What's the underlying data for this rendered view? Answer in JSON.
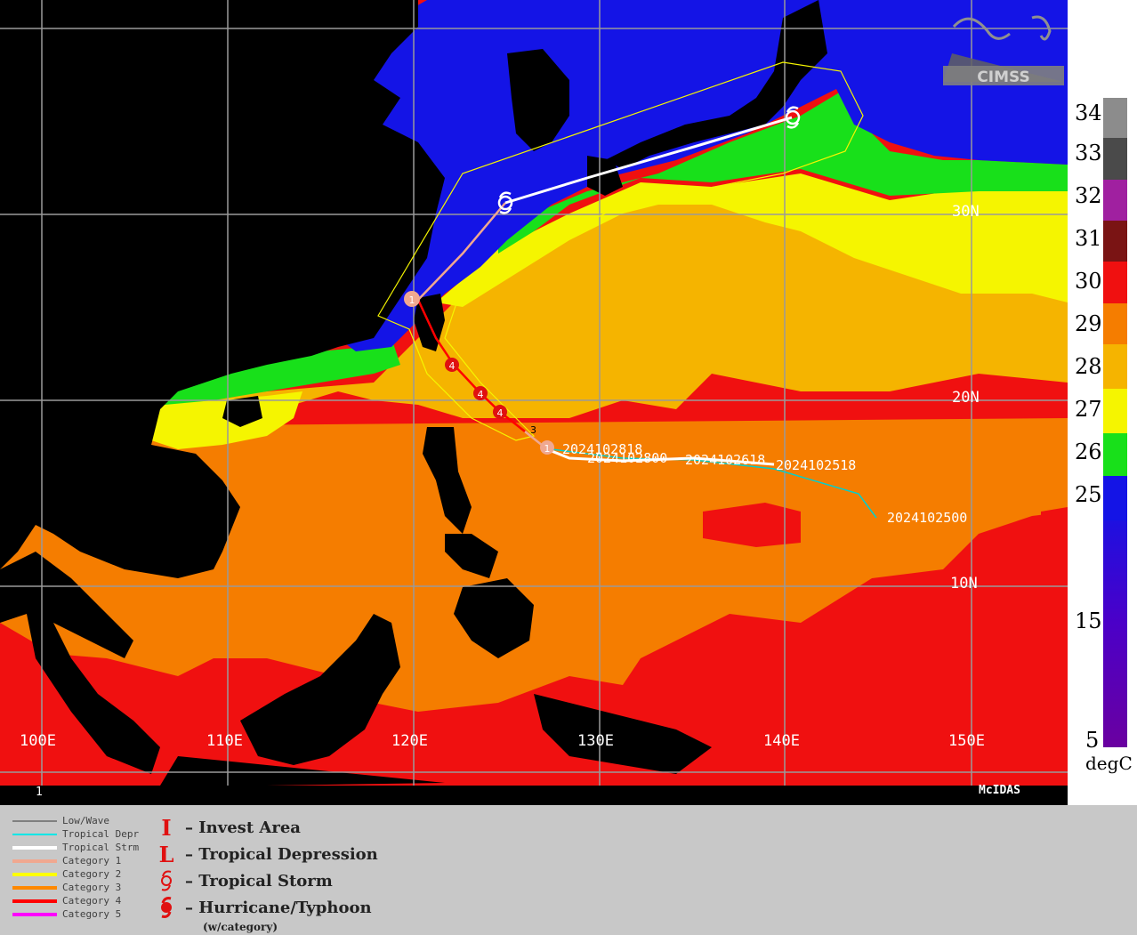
{
  "map": {
    "bg_ocean_colors": {
      "c25": "#1414e6",
      "c26": "#18e01a",
      "c27": "#f5f500",
      "c28": "#f5b400",
      "c29": "#f57d00",
      "c30": "#f01010",
      "land": "#000000",
      "grid": "#9a9a9a"
    },
    "lat_labels": [
      "30N",
      "20N",
      "10N"
    ],
    "lon_labels": [
      "100E",
      "110E",
      "120E",
      "130E",
      "140E",
      "150E"
    ],
    "logo_text": "CIMSS",
    "bottom_left_text": "1",
    "bottom_right_text": "McIDAS",
    "track_labels": [
      "2024102818",
      "2024102800",
      "2024102618",
      "2024102518",
      "2024102500"
    ],
    "storm_numbers": [
      "1",
      "4",
      "4",
      "4",
      "3",
      "1"
    ]
  },
  "colorbar": {
    "labels": [
      "34",
      "33",
      "32",
      "31",
      "30",
      "29",
      "28",
      "27",
      "26",
      "25",
      "15",
      "5"
    ],
    "unit": "degC",
    "colors": [
      "#8c8c8c",
      "#4a4a4a",
      "#a020a0",
      "#7a1414",
      "#f01010",
      "#f57d00",
      "#f5b400",
      "#f5f500",
      "#18e01a",
      "#1414e6",
      "#4b00c8",
      "#6a00a0"
    ]
  },
  "legend": {
    "line_items": [
      {
        "label": "Low/Wave",
        "color": "#808080"
      },
      {
        "label": "Tropical Depr",
        "color": "#00e6e6"
      },
      {
        "label": "Tropical Strm",
        "color": "#ffffff"
      },
      {
        "label": "Category 1",
        "color": "#f0a890"
      },
      {
        "label": "Category 2",
        "color": "#ffff00"
      },
      {
        "label": "Category 3",
        "color": "#ff8800"
      },
      {
        "label": "Category 4",
        "color": "#ff0000"
      },
      {
        "label": "Category 5",
        "color": "#ff00ff"
      }
    ],
    "symbol_items": [
      {
        "symbol": "I",
        "label": "– Invest Area"
      },
      {
        "symbol": "L",
        "label": "– Tropical Depression"
      },
      {
        "symbol": "storm",
        "label": "– Tropical Storm"
      },
      {
        "symbol": "hurricane",
        "label": "– Hurricane/Typhoon"
      }
    ],
    "note": "(w/category)"
  }
}
